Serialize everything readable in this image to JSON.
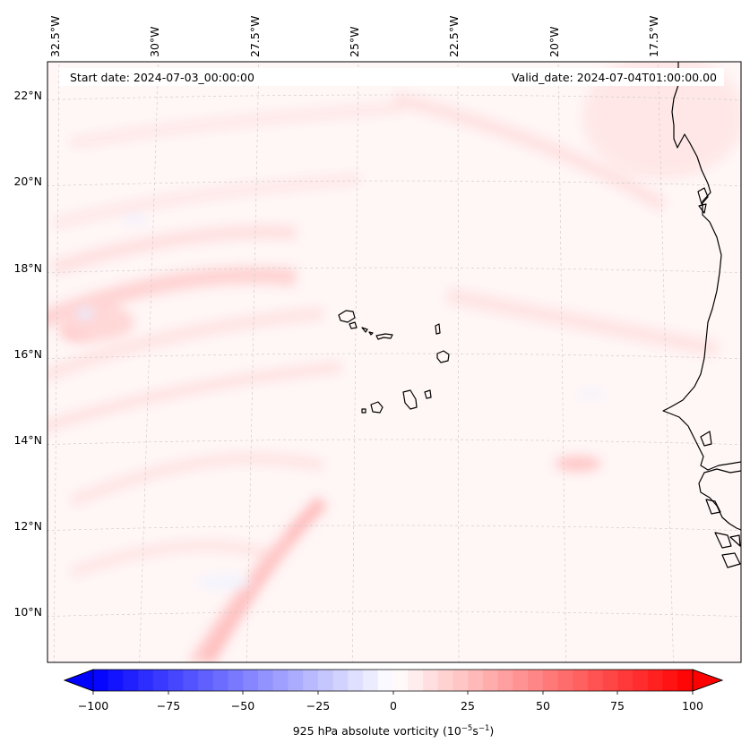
{
  "map": {
    "header": {
      "start_label": "Start date: 2024-07-03_00:00:00",
      "valid_label": "Valid_date: 2024-07-04T01:00:00.00"
    },
    "lon_labels": [
      "32.5°W",
      "30°W",
      "27.5°W",
      "25°W",
      "22.5°W",
      "20°W",
      "17.5°W"
    ],
    "lat_labels": [
      "22°N",
      "20°N",
      "18°N",
      "16°N",
      "14°N",
      "12°N",
      "10°N"
    ],
    "colorbar": {
      "ticks": [
        "−100",
        "−75",
        "−50",
        "−25",
        "0",
        "25",
        "50",
        "75",
        "100"
      ],
      "label_text": "925 hPa absolute vorticity (10",
      "label_exp1": "−5",
      "label_mid": "s",
      "label_exp2": "−1",
      "label_end": ")",
      "min": -100,
      "max": 100,
      "levels": 40
    },
    "colors": {
      "negative": "#0000ff",
      "positive": "#ff0000",
      "background_field": "#fff6f6",
      "coastline": "#000000"
    }
  }
}
